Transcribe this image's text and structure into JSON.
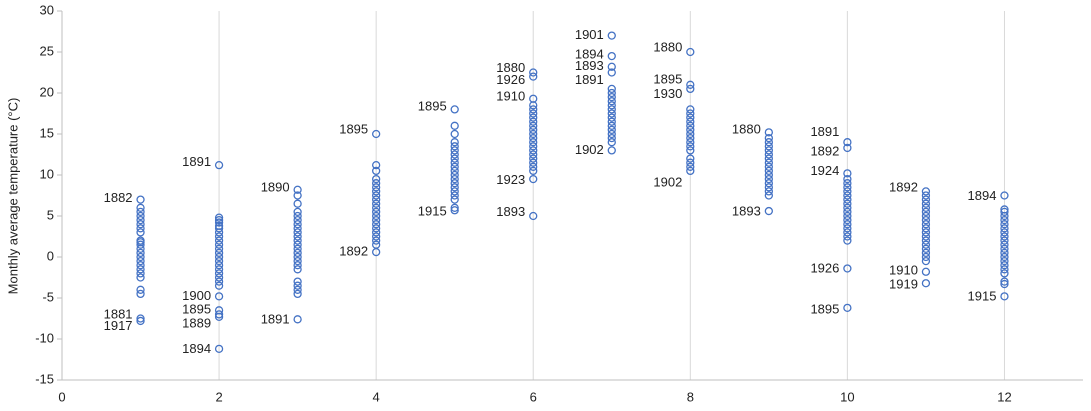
{
  "chart_data": {
    "type": "scatter",
    "y_label": "Monthly average temperature (°C)",
    "color": "#4472c4",
    "xlim": [
      0,
      13
    ],
    "xticks": [
      0,
      2,
      4,
      6,
      8,
      10,
      12
    ],
    "ylim": [
      -15,
      30
    ],
    "yticks": [
      -15,
      -10,
      -5,
      0,
      5,
      10,
      15,
      20,
      25,
      30
    ],
    "grid": "x",
    "groups": [
      {
        "x": 1,
        "values": [
          7,
          6,
          5.5,
          5,
          4.5,
          4,
          3.5,
          3,
          2,
          1.8,
          1.5,
          1,
          0.5,
          0,
          -0.5,
          -1,
          -1.5,
          -2,
          -2.5,
          -4,
          -4.5,
          -7.5,
          -7.8
        ]
      },
      {
        "x": 2,
        "values": [
          11.2,
          4.8,
          4.5,
          4.2,
          3.8,
          3.5,
          3,
          2.5,
          2,
          1.5,
          1,
          0.5,
          0,
          -0.5,
          -1,
          -1.5,
          -2,
          -2.5,
          -3,
          -3.5,
          -4.8,
          -6.5,
          -7,
          -7.3,
          -11.2
        ]
      },
      {
        "x": 3,
        "values": [
          8.2,
          7.5,
          6.5,
          5.5,
          5,
          4.5,
          4,
          3.5,
          3,
          2.5,
          2,
          1.5,
          1,
          0.5,
          0,
          -0.5,
          -1,
          -1.5,
          -3,
          -3.5,
          -4,
          -4.5,
          -7.6
        ]
      },
      {
        "x": 4,
        "values": [
          15,
          11.2,
          10.5,
          9.5,
          9,
          8.5,
          8,
          7.5,
          7,
          6.5,
          6,
          5.5,
          5,
          4.5,
          4,
          3.5,
          3,
          2.5,
          2,
          1.5,
          0.6
        ]
      },
      {
        "x": 5,
        "values": [
          18,
          16,
          15,
          14,
          13.5,
          13,
          12.5,
          12,
          11.5,
          11,
          10.5,
          10,
          9.5,
          9,
          8.5,
          8,
          7.5,
          7,
          6,
          5.7
        ]
      },
      {
        "x": 6,
        "values": [
          22.5,
          22,
          19.3,
          18.5,
          18,
          17.5,
          17,
          16.5,
          16,
          15.5,
          15,
          14.5,
          14,
          13.5,
          13,
          12.5,
          12,
          11.5,
          11,
          10.5,
          9.5,
          5
        ]
      },
      {
        "x": 7,
        "values": [
          27,
          24.5,
          23.2,
          22.5,
          20.5,
          20,
          19.5,
          19,
          18.5,
          18,
          17.5,
          17,
          16.5,
          16,
          15.5,
          15,
          14.5,
          14,
          13
        ]
      },
      {
        "x": 8,
        "values": [
          25,
          21,
          20.5,
          18,
          17.5,
          17,
          16.5,
          16,
          15.5,
          15,
          14.5,
          14,
          13.5,
          13,
          12,
          11.5,
          11,
          10.5
        ]
      },
      {
        "x": 9,
        "values": [
          15.2,
          14.5,
          14,
          13.5,
          13,
          12.5,
          12,
          11.5,
          11,
          10.5,
          10,
          9.5,
          9,
          8.5,
          8,
          7.5,
          5.6
        ]
      },
      {
        "x": 10,
        "values": [
          14,
          13.3,
          10.2,
          9.5,
          9,
          8.5,
          8,
          7.5,
          7,
          6.5,
          6,
          5.5,
          5,
          4.5,
          4,
          3.5,
          3,
          2.5,
          2,
          -1.4,
          -6.2
        ]
      },
      {
        "x": 11,
        "values": [
          8,
          7.5,
          7,
          6.5,
          6,
          5.5,
          5,
          4.5,
          4,
          3.5,
          3,
          2.5,
          2,
          1.5,
          1,
          0.5,
          0,
          -0.5,
          -1.8,
          -3.2
        ]
      },
      {
        "x": 12,
        "values": [
          7.5,
          5.8,
          5.5,
          5,
          4.5,
          4,
          3.5,
          3,
          2.5,
          2,
          1.5,
          1,
          0.5,
          0,
          -0.5,
          -1,
          -1.5,
          -2,
          -3,
          -3.3,
          -4.8
        ]
      }
    ],
    "annotations": [
      {
        "text": "1882",
        "x": 1,
        "y": 7.1
      },
      {
        "text": "1881",
        "x": 1,
        "y": -7.1
      },
      {
        "text": "1917",
        "x": 1,
        "y": -8.5
      },
      {
        "text": "1891",
        "x": 2,
        "y": 11.5
      },
      {
        "text": "1900",
        "x": 2,
        "y": -4.8
      },
      {
        "text": "1895",
        "x": 2,
        "y": -6.5
      },
      {
        "text": "1889",
        "x": 2,
        "y": -8.2
      },
      {
        "text": "1894",
        "x": 2,
        "y": -11.3
      },
      {
        "text": "1890",
        "x": 3,
        "y": 8.4
      },
      {
        "text": "1891",
        "x": 3,
        "y": -7.7
      },
      {
        "text": "1895",
        "x": 4,
        "y": 15.5
      },
      {
        "text": "1892",
        "x": 4,
        "y": 0.6
      },
      {
        "text": "1895",
        "x": 5,
        "y": 18.3
      },
      {
        "text": "1915",
        "x": 5,
        "y": 5.5
      },
      {
        "text": "1880",
        "x": 6,
        "y": 23
      },
      {
        "text": "1926",
        "x": 6,
        "y": 21.5
      },
      {
        "text": "1910",
        "x": 6,
        "y": 19.5
      },
      {
        "text": "1923",
        "x": 6,
        "y": 9.3
      },
      {
        "text": "1893",
        "x": 6,
        "y": 5.4
      },
      {
        "text": "1901",
        "x": 7,
        "y": 27
      },
      {
        "text": "1894",
        "x": 7,
        "y": 24.6
      },
      {
        "text": "1893",
        "x": 7,
        "y": 23.2
      },
      {
        "text": "1891",
        "x": 7,
        "y": 21.5
      },
      {
        "text": "1902",
        "x": 7,
        "y": 13
      },
      {
        "text": "1880",
        "x": 8,
        "y": 25.5
      },
      {
        "text": "1895",
        "x": 8,
        "y": 21.6
      },
      {
        "text": "1930",
        "x": 8,
        "y": 19.8
      },
      {
        "text": "1902",
        "x": 8,
        "y": 9
      },
      {
        "text": "1880",
        "x": 9,
        "y": 15.5
      },
      {
        "text": "1893",
        "x": 9,
        "y": 5.5
      },
      {
        "text": "1891",
        "x": 10,
        "y": 15.2
      },
      {
        "text": "1892",
        "x": 10,
        "y": 12.8
      },
      {
        "text": "1924",
        "x": 10,
        "y": 10.4
      },
      {
        "text": "1926",
        "x": 10,
        "y": -1.5
      },
      {
        "text": "1895",
        "x": 10,
        "y": -6.5
      },
      {
        "text": "1892",
        "x": 11,
        "y": 8.4
      },
      {
        "text": "1910",
        "x": 11,
        "y": -1.7
      },
      {
        "text": "1919",
        "x": 11,
        "y": -3.4
      },
      {
        "text": "1894",
        "x": 12,
        "y": 7.4
      },
      {
        "text": "1915",
        "x": 12,
        "y": -4.9
      }
    ]
  }
}
